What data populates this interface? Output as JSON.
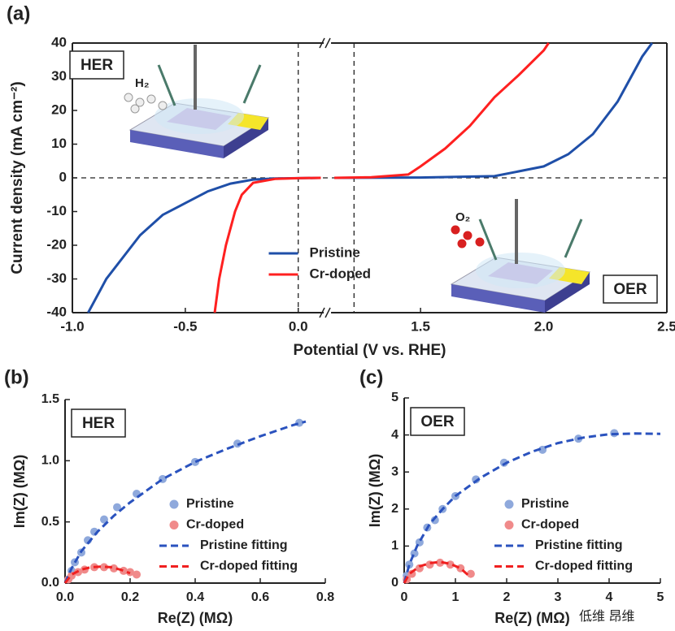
{
  "chart_data": [
    {
      "type": "line",
      "label": "(a)",
      "xlabel": "Potential (V vs. RHE)",
      "ylabel": "Current density (mA cm⁻²)",
      "xlim": [
        -1.0,
        2.5
      ],
      "xbreak": [
        0.12,
        1.13
      ],
      "ylim": [
        -40,
        40
      ],
      "xticks": [
        {
          "value": -1.0,
          "label": "-1.0"
        },
        {
          "value": -0.5,
          "label": "-0.5"
        },
        {
          "value": 0,
          "label": "0.0"
        },
        1.5,
        {
          "value": 2,
          "label": "2.0"
        },
        2.5
      ],
      "yticks": [
        -40,
        -30,
        -20,
        -10,
        0,
        10,
        20,
        30,
        40
      ],
      "reference_lines": {
        "x": [
          0,
          1.23
        ],
        "y": [
          0
        ]
      },
      "legend": "lower center",
      "insets": [
        "HER",
        "OER"
      ],
      "products": [
        "H₂",
        "O₂"
      ],
      "series": [
        {
          "name": "Pristine",
          "color": "#1f4fa8",
          "x": [
            -0.93,
            -0.85,
            -0.7,
            -0.6,
            -0.5,
            -0.4,
            -0.3,
            -0.2,
            -0.1,
            0,
            0.1,
            null,
            1.15,
            1.5,
            1.8,
            2.0,
            2.1,
            2.2,
            2.3,
            2.4,
            2.44
          ],
          "values": [
            -40,
            -30,
            -17,
            -11,
            -7.5,
            -4,
            -1.7,
            -0.5,
            -0.2,
            -0.1,
            0,
            null,
            0,
            0.1,
            0.5,
            3.4,
            7,
            13,
            22.6,
            36,
            40
          ]
        },
        {
          "name": "Cr-doped",
          "color": "#ff2020",
          "x": [
            -0.37,
            -0.35,
            -0.32,
            -0.28,
            -0.25,
            -0.2,
            -0.1,
            0,
            0.1,
            null,
            1.15,
            1.3,
            1.45,
            1.5,
            1.6,
            1.7,
            1.8,
            1.9,
            2.0,
            2.02
          ],
          "values": [
            -40,
            -30,
            -20,
            -10,
            -5,
            -1.5,
            -0.3,
            -0.1,
            0,
            null,
            0,
            0.2,
            1,
            3.4,
            8.7,
            15.4,
            23.9,
            30.6,
            37.8,
            40
          ]
        }
      ]
    },
    {
      "type": "scatter",
      "label": "(b)",
      "box_label": "HER",
      "xlabel": "Re(Z) (MΩ)",
      "ylabel": "Im(Z) (MΩ)",
      "xlim": [
        0,
        0.8
      ],
      "ylim": [
        0,
        1.5
      ],
      "xticks": [
        {
          "value": 0,
          "label": "0.0"
        },
        0.2,
        0.4,
        0.6,
        0.8
      ],
      "yticks": [
        {
          "value": 0,
          "label": "0.0"
        },
        0.5,
        {
          "value": 1,
          "label": "1.0"
        },
        1.5
      ],
      "legend": "lower right",
      "series": [
        {
          "name": "Pristine",
          "color": "#8fa9dc",
          "marker": "circle",
          "x": [
            0.01,
            0.02,
            0.03,
            0.05,
            0.07,
            0.09,
            0.12,
            0.16,
            0.22,
            0.3,
            0.4,
            0.53,
            0.72
          ],
          "values": [
            0.03,
            0.1,
            0.17,
            0.25,
            0.35,
            0.42,
            0.52,
            0.62,
            0.73,
            0.85,
            0.99,
            1.14,
            1.31
          ]
        },
        {
          "name": "Cr-doped",
          "color": "#f08a8a",
          "marker": "circle",
          "x": [
            0.01,
            0.02,
            0.04,
            0.06,
            0.09,
            0.12,
            0.15,
            0.18,
            0.2,
            0.22
          ],
          "values": [
            0.03,
            0.06,
            0.09,
            0.11,
            0.13,
            0.13,
            0.12,
            0.1,
            0.09,
            0.07
          ]
        },
        {
          "name": "Pristine fitting",
          "color": "#2a52be",
          "line_style": "dashed",
          "x": [
            0,
            0.02,
            0.05,
            0.1,
            0.15,
            0.2,
            0.3,
            0.4,
            0.5,
            0.6,
            0.7,
            0.74
          ],
          "values": [
            0,
            0.12,
            0.26,
            0.42,
            0.55,
            0.66,
            0.85,
            0.99,
            1.1,
            1.2,
            1.29,
            1.32
          ]
        },
        {
          "name": "Cr-doped fitting",
          "color": "#f02020",
          "line_style": "dashed",
          "x": [
            0,
            0.02,
            0.05,
            0.08,
            0.11,
            0.14,
            0.17,
            0.2
          ],
          "values": [
            0,
            0.07,
            0.11,
            0.13,
            0.135,
            0.13,
            0.11,
            0.08
          ]
        }
      ]
    },
    {
      "type": "scatter",
      "label": "(c)",
      "box_label": "OER",
      "xlabel": "Re(Z) (MΩ)",
      "ylabel": "Im(Z) (MΩ)",
      "xlim": [
        0,
        5
      ],
      "ylim": [
        0,
        5
      ],
      "xticks": [
        0,
        1,
        2,
        3,
        4,
        5
      ],
      "yticks": [
        0,
        1,
        2,
        3,
        4,
        5
      ],
      "legend": "lower right",
      "series": [
        {
          "name": "Pristine",
          "color": "#8fa9dc",
          "marker": "circle",
          "x": [
            0.05,
            0.1,
            0.2,
            0.3,
            0.45,
            0.6,
            0.75,
            1.0,
            1.4,
            1.95,
            2.7,
            3.4,
            4.1
          ],
          "values": [
            0.2,
            0.5,
            0.8,
            1.1,
            1.5,
            1.7,
            2.0,
            2.35,
            2.8,
            3.25,
            3.6,
            3.9,
            4.05
          ]
        },
        {
          "name": "Cr-doped",
          "color": "#f08a8a",
          "marker": "circle",
          "x": [
            0.05,
            0.15,
            0.3,
            0.5,
            0.7,
            0.9,
            1.1,
            1.3
          ],
          "values": [
            0.1,
            0.25,
            0.4,
            0.5,
            0.55,
            0.5,
            0.4,
            0.25
          ]
        },
        {
          "name": "Pristine fitting",
          "color": "#2a52be",
          "line_style": "dashed",
          "x": [
            0,
            0.1,
            0.25,
            0.5,
            0.75,
            1,
            1.5,
            2,
            2.5,
            3,
            3.5,
            4,
            4.5,
            5
          ],
          "values": [
            0,
            0.5,
            1.0,
            1.6,
            2.0,
            2.35,
            2.85,
            3.25,
            3.55,
            3.78,
            3.93,
            4.02,
            4.04,
            4.03
          ]
        },
        {
          "name": "Cr-doped fitting",
          "color": "#f02020",
          "line_style": "dashed",
          "x": [
            0,
            0.1,
            0.3,
            0.5,
            0.7,
            0.9,
            1.1,
            1.3
          ],
          "values": [
            0,
            0.25,
            0.45,
            0.54,
            0.57,
            0.52,
            0.4,
            0.15
          ]
        }
      ]
    }
  ],
  "watermark": "低维 昂维"
}
